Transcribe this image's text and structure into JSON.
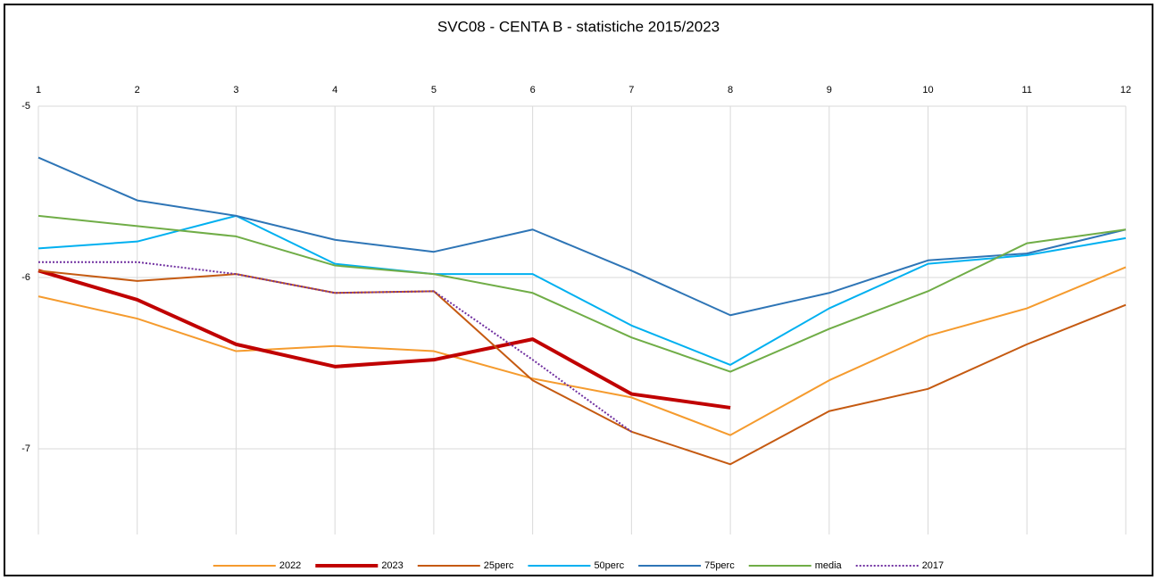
{
  "chart_data": {
    "type": "line",
    "title": "SVC08  - CENTA B - statistiche 2015/2023",
    "x": [
      1,
      2,
      3,
      4,
      5,
      6,
      7,
      8,
      9,
      10,
      11,
      12
    ],
    "xlim": [
      1,
      12
    ],
    "xticks": [
      1,
      2,
      3,
      4,
      5,
      6,
      7,
      8,
      9,
      10,
      11,
      12
    ],
    "ylim": [
      -7.5,
      -5
    ],
    "yticks": [
      -5,
      -6,
      -7
    ],
    "grid": true,
    "legend": "bottom",
    "series": [
      {
        "name": "2022",
        "color": "#f59b2e",
        "values": [
          -6.11,
          -6.24,
          -6.43,
          -6.4,
          -6.43,
          -6.59,
          -6.7,
          -6.92,
          -6.6,
          -6.34,
          -6.18,
          -5.94
        ]
      },
      {
        "name": "2023",
        "color": "#c00000",
        "bold": true,
        "values": [
          -5.96,
          -6.13,
          -6.39,
          -6.52,
          -6.48,
          -6.36,
          -6.68,
          -6.76,
          null,
          null,
          null,
          null
        ]
      },
      {
        "name": "25perc",
        "color": "#c55a11",
        "values": [
          -5.96,
          -6.02,
          -5.98,
          -6.09,
          -6.08,
          -6.6,
          -6.9,
          -7.09,
          -6.78,
          -6.65,
          -6.39,
          -6.16
        ]
      },
      {
        "name": "50perc",
        "color": "#00b0f0",
        "values": [
          -5.83,
          -5.79,
          -5.64,
          -5.92,
          -5.98,
          -5.98,
          -6.28,
          -6.51,
          -6.18,
          -5.92,
          -5.87,
          -5.77
        ]
      },
      {
        "name": "75perc",
        "color": "#2e75b6",
        "values": [
          -5.3,
          -5.55,
          -5.64,
          -5.78,
          -5.85,
          -5.72,
          -5.96,
          -6.22,
          -6.09,
          -5.9,
          -5.86,
          -5.72
        ]
      },
      {
        "name": "media",
        "color": "#70ad47",
        "values": [
          -5.64,
          -5.7,
          -5.76,
          -5.93,
          -5.98,
          -6.09,
          -6.35,
          -6.55,
          -6.3,
          -6.08,
          -5.8,
          -5.72
        ]
      },
      {
        "name": "2017",
        "color": "#7030a0",
        "dotted": true,
        "values": [
          -5.91,
          -5.91,
          -5.98,
          -6.09,
          -6.08,
          -6.48,
          -6.9,
          null,
          null,
          null,
          null,
          null
        ]
      }
    ]
  }
}
